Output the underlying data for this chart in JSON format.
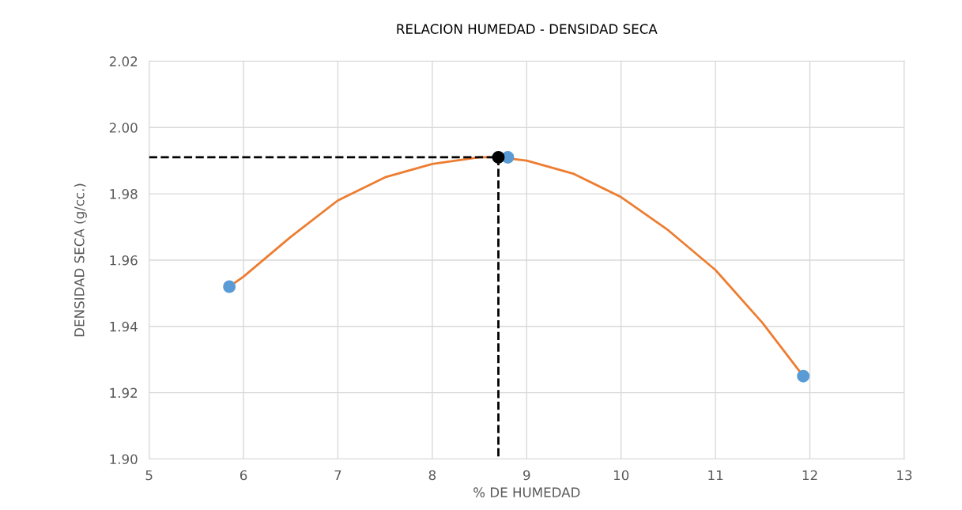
{
  "chart_data": {
    "type": "scatter",
    "title": "RELACION HUMEDAD - DENSIDAD SECA",
    "xlabel": "% DE HUMEDAD",
    "ylabel": "DENSIDAD SECA (g/cc.)",
    "xlim": [
      5,
      13
    ],
    "xticks": [
      5,
      6,
      7,
      8,
      9,
      10,
      11,
      12,
      13
    ],
    "ylim": [
      1.9,
      2.02
    ],
    "yticks": [
      {
        "value": 1.9,
        "label": "1.90"
      },
      {
        "value": 1.92,
        "label": "1.92"
      },
      {
        "value": 1.94,
        "label": "1.94"
      },
      {
        "value": 1.96,
        "label": "1.96"
      },
      {
        "value": 1.98,
        "label": "1.98"
      },
      {
        "value": 2.0,
        "label": "2.00"
      },
      {
        "value": 2.02,
        "label": "2.02"
      }
    ],
    "grid": true,
    "marker": "circle",
    "series": [
      {
        "type": "line",
        "color": "#ed7d31",
        "marker": "none",
        "line_style": "solid",
        "x": [
          5.85,
          6,
          6.5,
          7,
          7.5,
          8,
          8.5,
          8.7,
          9,
          9.5,
          10,
          10.5,
          11,
          11.5,
          11.93
        ],
        "values": [
          1.952,
          1.955,
          1.967,
          1.978,
          1.985,
          1.989,
          1.991,
          1.991,
          1.99,
          1.986,
          1.979,
          1.969,
          1.957,
          1.941,
          1.925
        ]
      },
      {
        "type": "line",
        "color": "#000000",
        "marker": "none",
        "line_style": "dashed",
        "x": [
          5,
          8.7,
          8.7
        ],
        "values": [
          1.991,
          1.991,
          1.9
        ]
      },
      {
        "color": "#5b9bd5",
        "x": [
          5.85,
          8.8,
          11.93
        ],
        "values": [
          1.952,
          1.991,
          1.925
        ]
      },
      {
        "type": "scatter",
        "marker": "circle",
        "color": "#000000",
        "x": [
          8.7
        ],
        "values": [
          1.991
        ]
      }
    ]
  }
}
